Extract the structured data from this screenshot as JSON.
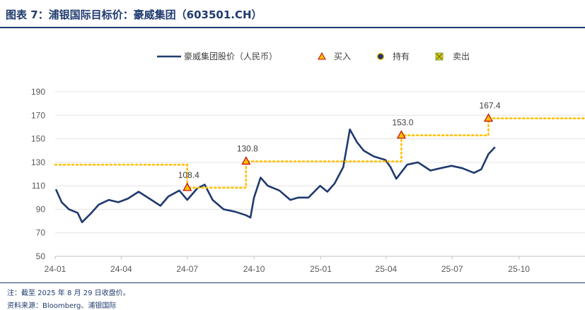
{
  "header": {
    "title": "图表 7：浦银国际目标价：豪威集团（603501.CH）"
  },
  "footer": {
    "note": "注：截至 2025 年 8 月 29 日收盘价。",
    "source": "资料来源：Bloomberg、浦银国际"
  },
  "colors": {
    "price": "#1f3a6e",
    "target": "#ffc000",
    "marker_fill": "#ffc000",
    "marker_edge": "#c00000"
  },
  "chart_data": {
    "type": "line",
    "title": "",
    "xlabel": "",
    "ylabel": "",
    "ylim": [
      50,
      190
    ],
    "yticks": [
      50,
      70,
      90,
      110,
      130,
      150,
      170,
      190
    ],
    "xlim": [
      "2024-01-01",
      "2025-12-31"
    ],
    "xticks": [
      "24-01",
      "24-04",
      "24-07",
      "24-10",
      "25-01",
      "25-04",
      "25-07",
      "25-10"
    ],
    "legend": {
      "placement": "top",
      "entries": [
        {
          "label": "豪威集团股价（人民币）",
          "icon": "line"
        },
        {
          "label": "买入",
          "icon": "triangle-icon"
        },
        {
          "label": "持有",
          "icon": "circle-icon"
        },
        {
          "label": "卖出",
          "icon": "x-square-icon"
        }
      ]
    },
    "series": [
      {
        "name": "豪威集团股价（人民币）",
        "x": [
          "2024-01-02",
          "2024-01-10",
          "2024-01-20",
          "2024-02-01",
          "2024-02-07",
          "2024-02-20",
          "2024-03-01",
          "2024-03-15",
          "2024-03-28",
          "2024-04-10",
          "2024-04-25",
          "2024-05-10",
          "2024-05-25",
          "2024-06-05",
          "2024-06-20",
          "2024-07-01",
          "2024-07-15",
          "2024-07-25",
          "2024-08-05",
          "2024-08-20",
          "2024-09-05",
          "2024-09-20",
          "2024-09-26",
          "2024-10-01",
          "2024-10-10",
          "2024-10-20",
          "2024-11-05",
          "2024-11-20",
          "2024-12-01",
          "2024-12-15",
          "2024-12-31",
          "2025-01-10",
          "2025-01-20",
          "2025-02-01",
          "2025-02-10",
          "2025-02-20",
          "2025-03-01",
          "2025-03-15",
          "2025-03-31",
          "2025-04-07",
          "2025-04-15",
          "2025-04-30",
          "2025-05-15",
          "2025-06-01",
          "2025-06-15",
          "2025-06-30",
          "2025-07-15",
          "2025-07-31",
          "2025-08-10",
          "2025-08-20",
          "2025-08-29"
        ],
        "y": [
          107,
          96,
          90,
          87,
          79,
          87,
          94,
          98,
          96,
          99,
          105,
          99,
          93,
          101,
          106,
          98,
          108,
          111,
          98,
          90,
          88,
          85,
          83,
          100,
          117,
          110,
          106,
          98,
          100,
          100,
          110,
          105,
          112,
          126,
          158,
          147,
          140,
          135,
          132,
          126,
          116,
          128,
          130,
          123,
          125,
          127,
          125,
          121,
          124,
          137,
          143
        ]
      },
      {
        "name": "",
        "step": true,
        "x": [
          "2024-01-01",
          "2024-07-01",
          "2024-07-01",
          "2024-09-20",
          "2024-09-20",
          "2025-04-22",
          "2025-04-22",
          "2025-08-20",
          "2025-08-20",
          "2025-12-31"
        ],
        "y": [
          128,
          128,
          108.4,
          108.4,
          130.8,
          130.8,
          153.0,
          153.0,
          167.4,
          167.4
        ]
      }
    ],
    "markers": [
      {
        "x": "2024-07-01",
        "y": 108.4,
        "label": "108.4",
        "rating": "买入"
      },
      {
        "x": "2024-09-20",
        "y": 130.8,
        "label": "130.8",
        "rating": "买入"
      },
      {
        "x": "2025-04-22",
        "y": 153.0,
        "label": "153.0",
        "rating": "买入"
      },
      {
        "x": "2025-08-20",
        "y": 167.4,
        "label": "167.4",
        "rating": "买入"
      }
    ]
  }
}
